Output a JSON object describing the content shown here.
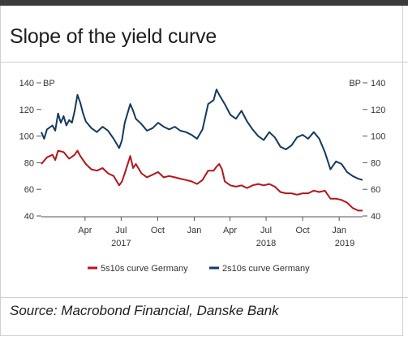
{
  "title": "Slope of the yield curve",
  "source": "Source: Macrobond Financial, Danske Bank",
  "colors": {
    "series_5s10s": "#b5151b",
    "series_2s10s": "#14395f",
    "axis": "#555555",
    "frame_bar": "#3b3b3b"
  },
  "chart_data": {
    "type": "line",
    "title": "Slope of the yield curve",
    "y_unit_left": "BP",
    "y_unit_right": "BP",
    "ylim": [
      40,
      140
    ],
    "yticks": [
      40,
      60,
      80,
      100,
      120,
      140
    ],
    "xlim": [
      "2016-12-12",
      "2019-03-01"
    ],
    "x_month_ticks": [
      {
        "date": "2017-04-01",
        "label": "Apr"
      },
      {
        "date": "2017-07-01",
        "label": "Jul"
      },
      {
        "date": "2017-10-01",
        "label": "Oct"
      },
      {
        "date": "2018-01-01",
        "label": "Jan"
      },
      {
        "date": "2018-04-01",
        "label": "Apr"
      },
      {
        "date": "2018-07-01",
        "label": "Jul"
      },
      {
        "date": "2018-10-01",
        "label": "Oct"
      },
      {
        "date": "2019-01-01",
        "label": "Jan"
      }
    ],
    "x_year_labels": [
      {
        "date": "2017-07-01",
        "label": "2017"
      },
      {
        "date": "2018-07-01",
        "label": "2018"
      },
      {
        "date": "2019-01-15",
        "label": "2019"
      }
    ],
    "grid": false,
    "legend_position": "bottom",
    "series": [
      {
        "name": "5s10s curve Germany",
        "color": "#b5151b",
        "points": [
          [
            "2016-12-12",
            79
          ],
          [
            "2016-12-26",
            84
          ],
          [
            "2017-01-09",
            86
          ],
          [
            "2017-01-16",
            82
          ],
          [
            "2017-01-23",
            89
          ],
          [
            "2017-02-06",
            88
          ],
          [
            "2017-02-20",
            83
          ],
          [
            "2017-03-06",
            86
          ],
          [
            "2017-03-13",
            89
          ],
          [
            "2017-03-20",
            85
          ],
          [
            "2017-04-03",
            79
          ],
          [
            "2017-04-17",
            75
          ],
          [
            "2017-05-01",
            74
          ],
          [
            "2017-05-15",
            76
          ],
          [
            "2017-05-29",
            72
          ],
          [
            "2017-06-12",
            70
          ],
          [
            "2017-06-26",
            63
          ],
          [
            "2017-07-03",
            66
          ],
          [
            "2017-07-10",
            72
          ],
          [
            "2017-07-24",
            85
          ],
          [
            "2017-07-31",
            76
          ],
          [
            "2017-08-07",
            79
          ],
          [
            "2017-08-21",
            72
          ],
          [
            "2017-09-04",
            69
          ],
          [
            "2017-09-18",
            71
          ],
          [
            "2017-10-02",
            73
          ],
          [
            "2017-10-16",
            69
          ],
          [
            "2017-10-30",
            70
          ],
          [
            "2017-11-13",
            69
          ],
          [
            "2017-11-27",
            68
          ],
          [
            "2017-12-11",
            67
          ],
          [
            "2017-12-25",
            66
          ],
          [
            "2018-01-08",
            64
          ],
          [
            "2018-01-22",
            67
          ],
          [
            "2018-02-05",
            74
          ],
          [
            "2018-02-19",
            74
          ],
          [
            "2018-02-26",
            77
          ],
          [
            "2018-03-05",
            79
          ],
          [
            "2018-03-12",
            75
          ],
          [
            "2018-03-19",
            66
          ],
          [
            "2018-04-02",
            63
          ],
          [
            "2018-04-16",
            62
          ],
          [
            "2018-04-30",
            63
          ],
          [
            "2018-05-14",
            61
          ],
          [
            "2018-05-28",
            63
          ],
          [
            "2018-06-11",
            64
          ],
          [
            "2018-06-25",
            63
          ],
          [
            "2018-07-09",
            64
          ],
          [
            "2018-07-23",
            62
          ],
          [
            "2018-08-06",
            58
          ],
          [
            "2018-08-20",
            57
          ],
          [
            "2018-09-03",
            57
          ],
          [
            "2018-09-17",
            56
          ],
          [
            "2018-10-01",
            57
          ],
          [
            "2018-10-15",
            57
          ],
          [
            "2018-10-29",
            59
          ],
          [
            "2018-11-12",
            58
          ],
          [
            "2018-11-26",
            59
          ],
          [
            "2018-12-10",
            53
          ],
          [
            "2018-12-24",
            53
          ],
          [
            "2019-01-07",
            52
          ],
          [
            "2019-01-21",
            50
          ],
          [
            "2019-02-04",
            46
          ],
          [
            "2019-02-18",
            44
          ],
          [
            "2019-03-01",
            44
          ]
        ]
      },
      {
        "name": "2s10s curve Germany",
        "color": "#14395f",
        "points": [
          [
            "2016-12-12",
            103
          ],
          [
            "2016-12-19",
            98
          ],
          [
            "2016-12-26",
            105
          ],
          [
            "2017-01-09",
            108
          ],
          [
            "2017-01-16",
            104
          ],
          [
            "2017-01-23",
            117
          ],
          [
            "2017-01-30",
            110
          ],
          [
            "2017-02-06",
            115
          ],
          [
            "2017-02-13",
            108
          ],
          [
            "2017-02-20",
            112
          ],
          [
            "2017-02-27",
            110
          ],
          [
            "2017-03-06",
            119
          ],
          [
            "2017-03-13",
            131
          ],
          [
            "2017-03-20",
            125
          ],
          [
            "2017-03-27",
            117
          ],
          [
            "2017-04-03",
            111
          ],
          [
            "2017-04-17",
            106
          ],
          [
            "2017-05-01",
            103
          ],
          [
            "2017-05-15",
            107
          ],
          [
            "2017-05-29",
            104
          ],
          [
            "2017-06-12",
            98
          ],
          [
            "2017-06-26",
            91
          ],
          [
            "2017-07-03",
            97
          ],
          [
            "2017-07-10",
            110
          ],
          [
            "2017-07-24",
            124
          ],
          [
            "2017-07-31",
            119
          ],
          [
            "2017-08-07",
            113
          ],
          [
            "2017-08-21",
            109
          ],
          [
            "2017-09-04",
            104
          ],
          [
            "2017-09-18",
            106
          ],
          [
            "2017-10-02",
            110
          ],
          [
            "2017-10-16",
            107
          ],
          [
            "2017-10-30",
            105
          ],
          [
            "2017-11-13",
            107
          ],
          [
            "2017-11-27",
            104
          ],
          [
            "2017-12-11",
            103
          ],
          [
            "2017-12-25",
            101
          ],
          [
            "2018-01-08",
            98
          ],
          [
            "2018-01-22",
            105
          ],
          [
            "2018-02-05",
            124
          ],
          [
            "2018-02-19",
            127
          ],
          [
            "2018-02-26",
            135
          ],
          [
            "2018-03-05",
            131
          ],
          [
            "2018-03-19",
            124
          ],
          [
            "2018-04-02",
            116
          ],
          [
            "2018-04-16",
            113
          ],
          [
            "2018-04-30",
            119
          ],
          [
            "2018-05-14",
            111
          ],
          [
            "2018-05-28",
            105
          ],
          [
            "2018-06-11",
            100
          ],
          [
            "2018-06-25",
            97
          ],
          [
            "2018-07-09",
            103
          ],
          [
            "2018-07-23",
            99
          ],
          [
            "2018-08-06",
            92
          ],
          [
            "2018-08-20",
            90
          ],
          [
            "2018-09-03",
            93
          ],
          [
            "2018-09-17",
            99
          ],
          [
            "2018-10-01",
            101
          ],
          [
            "2018-10-15",
            98
          ],
          [
            "2018-10-29",
            103
          ],
          [
            "2018-11-12",
            98
          ],
          [
            "2018-11-26",
            88
          ],
          [
            "2018-12-10",
            75
          ],
          [
            "2018-12-24",
            81
          ],
          [
            "2019-01-07",
            79
          ],
          [
            "2019-01-21",
            73
          ],
          [
            "2019-02-04",
            70
          ],
          [
            "2019-02-18",
            68
          ],
          [
            "2019-03-01",
            67
          ]
        ]
      }
    ]
  }
}
